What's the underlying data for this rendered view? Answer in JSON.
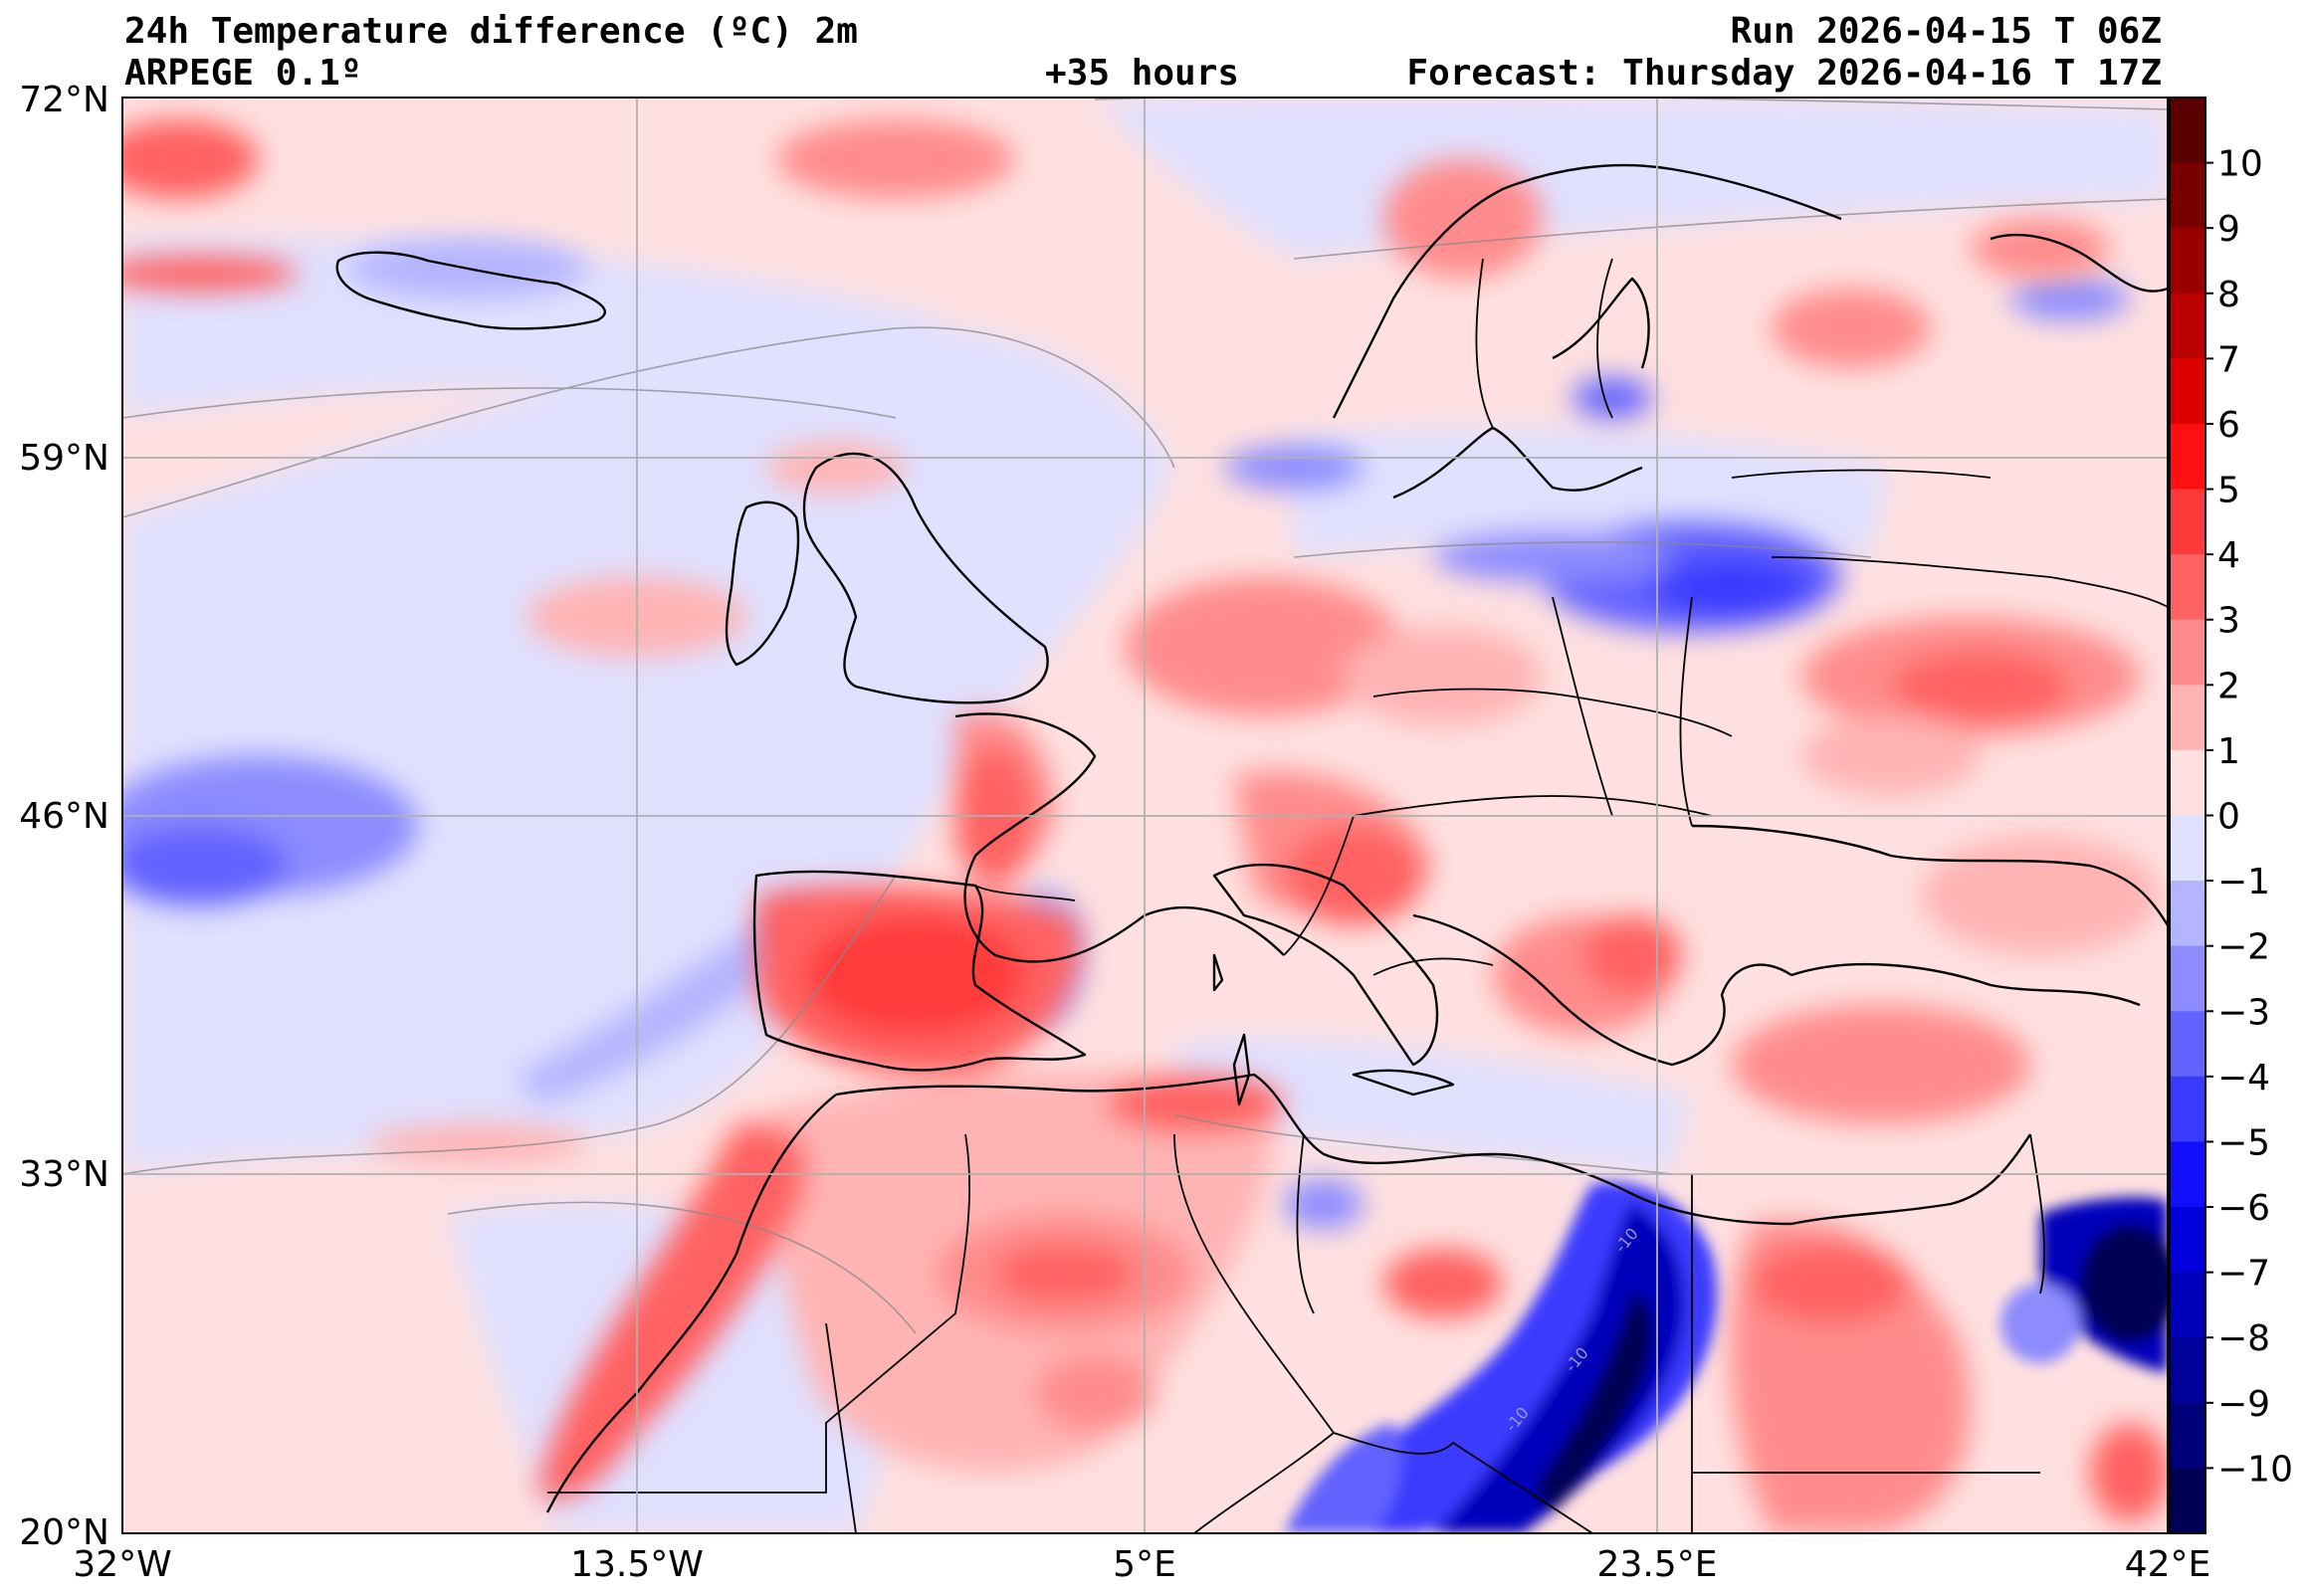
{
  "header": {
    "title_left": "24h Temperature difference (ºC) 2m",
    "model": "ARPEGE 0.1º",
    "lead_time": "+35 hours",
    "run": "Run 2026-04-15 T 06Z",
    "forecast": "Forecast: Thursday 2026-04-16 T 17Z"
  },
  "map": {
    "lat_labels": [
      "72°N",
      "59°N",
      "46°N",
      "33°N",
      "20°N"
    ],
    "lon_labels": [
      "32°W",
      "13.5°W",
      "5°E",
      "23.5°E",
      "42°E"
    ],
    "lat_range": [
      20,
      72
    ],
    "lon_range": [
      -32,
      42
    ],
    "contour_labels": [
      "-10",
      "-10",
      "-10"
    ]
  },
  "colorbar": {
    "labels": [
      "10",
      "9",
      "8",
      "7",
      "6",
      "5",
      "4",
      "3",
      "2",
      "1",
      "0",
      "−1",
      "−2",
      "−3",
      "−4",
      "−5",
      "−6",
      "−7",
      "−8",
      "−9",
      "−10"
    ],
    "colors": [
      "#7a0000",
      "#9a0000",
      "#bb0000",
      "#dd0000",
      "#ff1010",
      "#ff3a3a",
      "#ff6262",
      "#ff8c8c",
      "#ffb4b4",
      "#ffe0e0",
      "#e0e0ff",
      "#b4b4ff",
      "#8c8cff",
      "#6262ff",
      "#3a3aff",
      "#1010ff",
      "#0000dd",
      "#0000bb",
      "#00009a",
      "#00007a",
      "#000055"
    ]
  }
}
